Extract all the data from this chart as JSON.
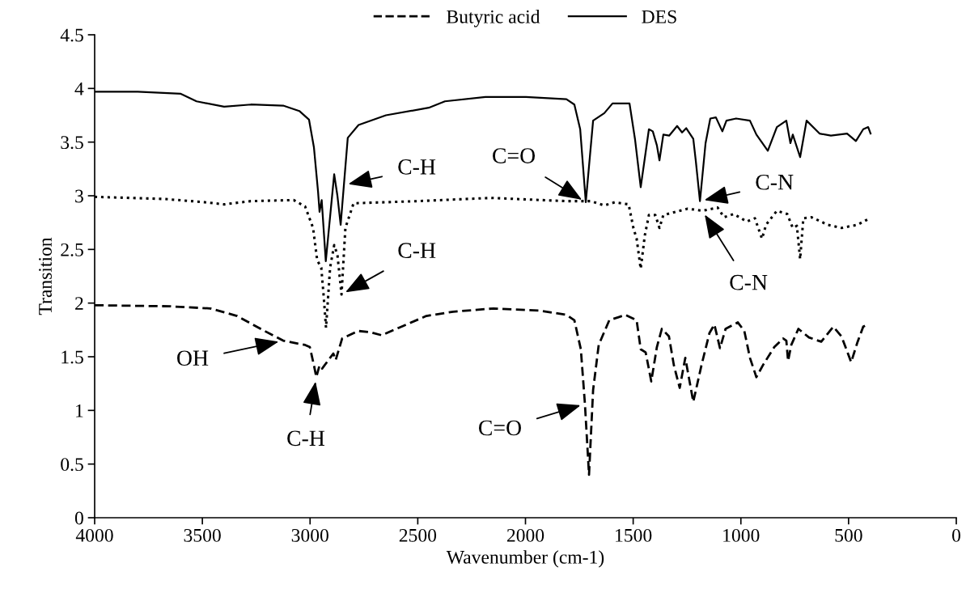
{
  "chart_data": {
    "type": "line",
    "xlabel": "Wavenumber (cm-1)",
    "ylabel": "Transition",
    "xlim": [
      4000,
      0
    ],
    "xticks": [
      4000,
      3500,
      3000,
      2500,
      2000,
      1500,
      1000,
      500,
      0
    ],
    "ylim": [
      0,
      4.5
    ],
    "yticks": [
      0,
      0.5,
      1,
      1.5,
      2,
      2.5,
      3,
      3.5,
      4,
      4.5
    ],
    "grid": false,
    "legend": "top",
    "marker": "none",
    "series": [
      {
        "name": "Butyric acid",
        "color": "#000000",
        "line_style": "dashed",
        "x": [
          4000,
          3651,
          3463,
          3339,
          3211,
          3125,
          3023,
          3001,
          2982,
          2971,
          2956,
          2944,
          2907,
          2892,
          2881,
          2851,
          2776,
          2723,
          2667,
          2588,
          2460,
          2336,
          2148,
          1934,
          1810,
          1773,
          1743,
          1724,
          1705,
          1686,
          1660,
          1611,
          1536,
          1484,
          1465,
          1442,
          1416,
          1390,
          1367,
          1334,
          1311,
          1284,
          1258,
          1221,
          1183,
          1146,
          1123,
          1097,
          1071,
          1014,
          984,
          958,
          928,
          898,
          845,
          804,
          789,
          781,
          766,
          733,
          684,
          627,
          571,
          533,
          488,
          458,
          432,
          413
        ],
        "values": [
          1.98,
          1.97,
          1.95,
          1.88,
          1.74,
          1.65,
          1.61,
          1.59,
          1.42,
          1.31,
          1.42,
          1.39,
          1.49,
          1.53,
          1.47,
          1.67,
          1.74,
          1.73,
          1.7,
          1.77,
          1.88,
          1.92,
          1.95,
          1.93,
          1.89,
          1.84,
          1.57,
          1.06,
          0.4,
          1.19,
          1.61,
          1.84,
          1.89,
          1.84,
          1.57,
          1.54,
          1.27,
          1.59,
          1.76,
          1.69,
          1.42,
          1.21,
          1.49,
          1.08,
          1.42,
          1.72,
          1.8,
          1.58,
          1.76,
          1.82,
          1.74,
          1.49,
          1.31,
          1.42,
          1.59,
          1.67,
          1.65,
          1.46,
          1.61,
          1.76,
          1.68,
          1.64,
          1.78,
          1.69,
          1.45,
          1.64,
          1.78,
          1.8
        ]
      },
      {
        "color": "#000000",
        "line_style": "dotted",
        "x": [
          4000,
          3677,
          3489,
          3399,
          3275,
          3076,
          3023,
          2986,
          2967,
          2948,
          2937,
          2926,
          2907,
          2888,
          2873,
          2854,
          2836,
          2798,
          2648,
          2500,
          2160,
          1810,
          1697,
          1634,
          1585,
          1521,
          1499,
          1484,
          1465,
          1446,
          1427,
          1397,
          1378,
          1360,
          1247,
          1179,
          1108,
          1078,
          1033,
          973,
          935,
          902,
          883,
          833,
          785,
          759,
          740,
          725,
          710,
          672,
          597,
          533,
          458,
          421,
          409
        ],
        "values": [
          2.99,
          2.97,
          2.94,
          2.92,
          2.95,
          2.96,
          2.9,
          2.7,
          2.4,
          2.33,
          2.07,
          1.77,
          2.33,
          2.54,
          2.45,
          2.08,
          2.7,
          2.93,
          2.94,
          2.95,
          2.98,
          2.95,
          2.95,
          2.91,
          2.94,
          2.92,
          2.7,
          2.6,
          2.32,
          2.63,
          2.82,
          2.82,
          2.7,
          2.82,
          2.88,
          2.86,
          2.89,
          2.8,
          2.83,
          2.76,
          2.79,
          2.6,
          2.73,
          2.86,
          2.83,
          2.7,
          2.72,
          2.41,
          2.79,
          2.8,
          2.73,
          2.7,
          2.73,
          2.77,
          2.78
        ]
      },
      {
        "name": "DES",
        "color": "#000000",
        "line_style": "solid",
        "x": [
          4000,
          3800,
          3600,
          3527,
          3399,
          3275,
          3125,
          3050,
          3005,
          2982,
          2963,
          2956,
          2946,
          2927,
          2888,
          2873,
          2858,
          2825,
          2775,
          2648,
          2449,
          2374,
          2186,
          1998,
          1810,
          1773,
          1746,
          1720,
          1686,
          1634,
          1596,
          1517,
          1491,
          1465,
          1427,
          1409,
          1390,
          1378,
          1360,
          1333,
          1296,
          1273,
          1254,
          1221,
          1209,
          1190,
          1164,
          1142,
          1116,
          1086,
          1067,
          1022,
          958,
          928,
          875,
          833,
          789,
          770,
          759,
          725,
          695,
          635,
          582,
          507,
          466,
          432,
          409,
          398
        ],
        "values": [
          3.97,
          3.97,
          3.95,
          3.88,
          3.83,
          3.85,
          3.84,
          3.79,
          3.71,
          3.45,
          3.04,
          2.85,
          2.96,
          2.39,
          3.2,
          3.0,
          2.73,
          3.54,
          3.66,
          3.75,
          3.82,
          3.88,
          3.92,
          3.92,
          3.9,
          3.85,
          3.62,
          2.94,
          3.7,
          3.77,
          3.86,
          3.86,
          3.52,
          3.08,
          3.62,
          3.6,
          3.47,
          3.33,
          3.57,
          3.56,
          3.65,
          3.59,
          3.63,
          3.53,
          3.32,
          2.95,
          3.49,
          3.72,
          3.73,
          3.6,
          3.7,
          3.72,
          3.7,
          3.57,
          3.42,
          3.64,
          3.7,
          3.49,
          3.57,
          3.36,
          3.7,
          3.58,
          3.56,
          3.58,
          3.51,
          3.62,
          3.64,
          3.58
        ]
      }
    ],
    "annotations": [
      {
        "text": "C-H",
        "x": 2843,
        "y": 3.1
      },
      {
        "text": "C=O",
        "x": 1720,
        "y": 2.94
      },
      {
        "text": "C-N",
        "x": 1190,
        "y": 2.95
      },
      {
        "text": "C-H",
        "x": 2854,
        "y": 2.08
      },
      {
        "text": "C-N",
        "x": 1179,
        "y": 2.86
      },
      {
        "text": "OH",
        "x": 3125,
        "y": 1.65
      },
      {
        "text": "C-H",
        "x": 2971,
        "y": 1.31
      },
      {
        "text": "C=O",
        "x": 1724,
        "y": 1.06
      }
    ]
  }
}
